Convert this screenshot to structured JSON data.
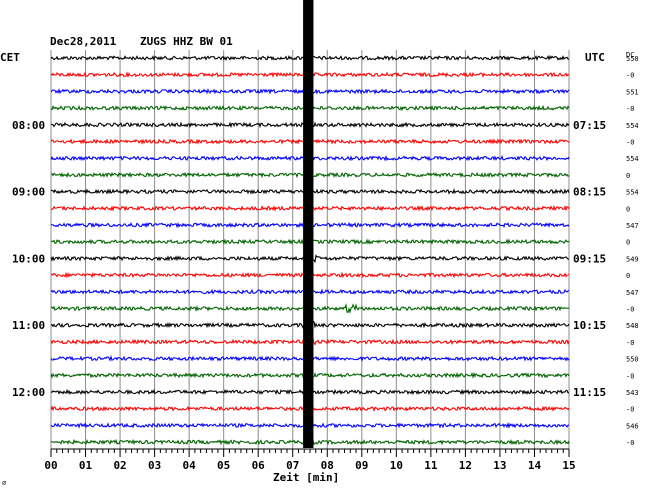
{
  "header": {
    "date": "Dec28,2011",
    "station": "ZUGS HHZ BW 01",
    "left_zone": "CET",
    "right_zone": "UTC",
    "dc_label": "DC"
  },
  "footer": {
    "axis_label": "Zeit [min]",
    "corner_mark": "⌀"
  },
  "chart_data": {
    "type": "line",
    "title": "Dec28,2011   ZUGS HHZ BW 01",
    "xlabel": "Zeit [min]",
    "xlim": [
      0,
      15
    ],
    "x_ticks": [
      "00",
      "01",
      "02",
      "03",
      "04",
      "05",
      "06",
      "07",
      "08",
      "09",
      "10",
      "11",
      "12",
      "13",
      "14",
      "15"
    ],
    "trace_colors": [
      "#000000",
      "#ff0000",
      "#0000ff",
      "#006400"
    ],
    "left_time_labels": [
      {
        "row": 4,
        "text": "08:00"
      },
      {
        "row": 8,
        "text": "09:00"
      },
      {
        "row": 12,
        "text": "10:00"
      },
      {
        "row": 16,
        "text": "11:00"
      },
      {
        "row": 20,
        "text": "12:00"
      }
    ],
    "right_time_labels": [
      {
        "row": 0,
        "text": "UTC"
      },
      {
        "row": 4,
        "text": "07:15"
      },
      {
        "row": 8,
        "text": "08:15"
      },
      {
        "row": 12,
        "text": "09:15"
      },
      {
        "row": 16,
        "text": "10:15"
      },
      {
        "row": 20,
        "text": "11:15"
      }
    ],
    "dc_offsets": [
      "550",
      "-0",
      "551",
      "-0",
      "554",
      "-0",
      "554",
      "0",
      "554",
      "0",
      "547",
      "0",
      "549",
      "0",
      "547",
      "-0",
      "548",
      "-0",
      "550",
      "-0",
      "543",
      "-0",
      "546",
      "-0"
    ],
    "rows": 24,
    "saturated_band_x_min": [
      7.3,
      7.6
    ],
    "events": [
      {
        "row": 12,
        "x_min": 7.5,
        "description_amp": "large"
      },
      {
        "row": 15,
        "x_min": 8.7,
        "description_amp": "medium"
      },
      {
        "row": 16,
        "x_min": 7.5,
        "description_amp": "medium"
      },
      {
        "row": 17,
        "x_min": 7.5,
        "description_amp": "small"
      },
      {
        "row": 21,
        "x_min": 7.5,
        "description_amp": "small"
      },
      {
        "row": 23,
        "x_min": 7.5,
        "description_amp": "small"
      }
    ]
  }
}
